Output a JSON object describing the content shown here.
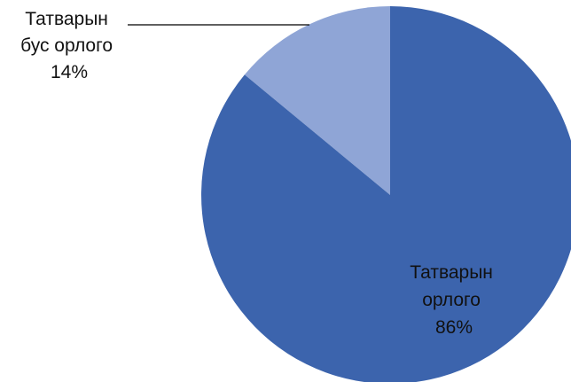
{
  "chart_data": {
    "type": "pie",
    "title": "",
    "slices": [
      {
        "name": "Татварын бус орлого",
        "value": 14,
        "label_lines": [
          "Татварын",
          "бус орлого",
          "14%"
        ],
        "color": "#8fa5d6"
      },
      {
        "name": "Татварын орлого",
        "value": 86,
        "label_lines": [
          "Татварын",
          "орлого",
          "86%"
        ],
        "color": "#3c64ad"
      }
    ],
    "legend": "none"
  }
}
